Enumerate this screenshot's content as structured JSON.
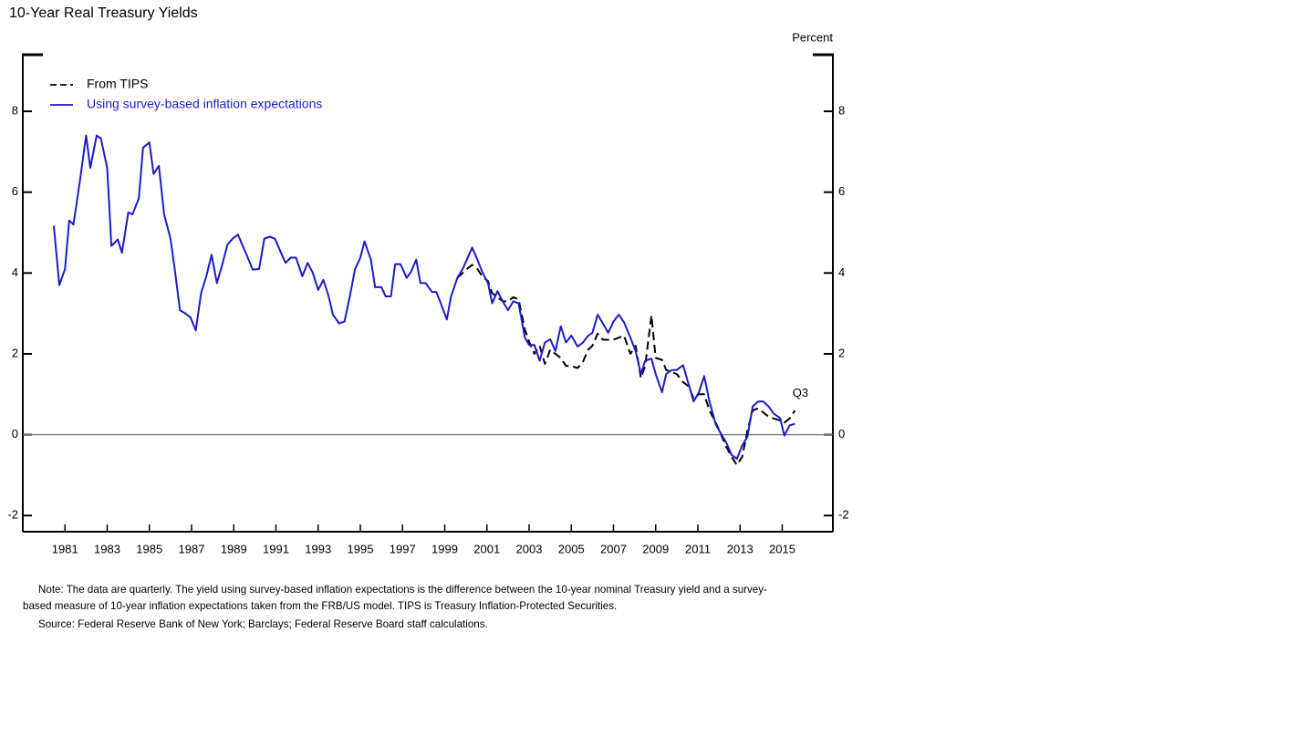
{
  "chart_data": {
    "type": "line",
    "title": "10-Year Real Treasury Yields",
    "y_axis_label": "Percent",
    "annotation": "Q3",
    "notes": [
      "Note:  The data are quarterly. The yield using survey-based inflation expectations is the difference between the 10-year nominal Treasury yield and a survey-",
      "based measure of 10-year inflation expectations taken from the FRB/US model. TIPS is Treasury Inflation-Protected Securities.",
      "Source:  Federal Reserve Bank of New York; Barclays; Federal Reserve Board staff calculations."
    ],
    "legend": "top-left",
    "xlim": [
      1979,
      2017.4
    ],
    "xticks": [
      1981,
      1983,
      1985,
      1987,
      1989,
      1991,
      1993,
      1995,
      1997,
      1999,
      2001,
      2003,
      2005,
      2007,
      2009,
      2011,
      2013,
      2015
    ],
    "ylim": [
      -2.4,
      9.4
    ],
    "yticks": [
      -2,
      0,
      2,
      4,
      6,
      8
    ],
    "x": [
      1980.47,
      1980.73,
      1981.0,
      1981.2,
      1981.4,
      1981.7,
      1982.0,
      1982.2,
      1982.5,
      1982.7,
      1983.0,
      1983.2,
      1983.5,
      1983.7,
      1984.0,
      1984.2,
      1984.5,
      1984.7,
      1985.0,
      1985.2,
      1985.45,
      1985.7,
      1986.0,
      1986.2,
      1986.45,
      1986.7,
      1986.95,
      1987.2,
      1987.45,
      1987.7,
      1987.95,
      1988.2,
      1988.45,
      1988.7,
      1988.95,
      1989.2,
      1989.4,
      1989.65,
      1989.9,
      1990.2,
      1990.45,
      1990.7,
      1990.95,
      1991.2,
      1991.45,
      1991.7,
      1991.95,
      1992.25,
      1992.5,
      1992.75,
      1993.0,
      1993.25,
      1993.5,
      1993.7,
      1994.0,
      1994.25,
      1994.5,
      1994.75,
      1995.0,
      1995.2,
      1995.5,
      1995.7,
      1996.0,
      1996.2,
      1996.45,
      1996.65,
      1996.9,
      1997.2,
      1997.4,
      1997.65,
      1997.85,
      1998.1,
      1998.4,
      1998.6,
      1998.85,
      1999.1,
      1999.3,
      1999.6,
      1999.85,
      2000.05,
      2000.3,
      2000.55,
      2000.8,
      2001.05,
      2001.25,
      2001.5,
      2001.75,
      2002.0,
      2002.25,
      2002.5,
      2002.8,
      2003.0,
      2003.25,
      2003.5,
      2003.75,
      2004.0,
      2004.25,
      2004.5,
      2004.75,
      2005.0,
      2005.3,
      2005.55,
      2005.8,
      2006.0,
      2006.25,
      2006.5,
      2006.75,
      2007.0,
      2007.25,
      2007.5,
      2007.8,
      2008.05,
      2008.3,
      2008.5,
      2008.8,
      2009.0,
      2009.3,
      2009.5,
      2009.75,
      2010.0,
      2010.3,
      2010.55,
      2010.8,
      2011.05,
      2011.3,
      2011.55,
      2011.85,
      2012.1,
      2012.35,
      2012.6,
      2012.85,
      2013.1,
      2013.35,
      2013.6,
      2013.85,
      2014.1,
      2014.35,
      2014.6,
      2014.9,
      2015.1,
      2015.35,
      2015.6
    ],
    "series": [
      {
        "name": "From TIPS",
        "color": "#000000",
        "style": "dashed",
        "values": [
          null,
          null,
          null,
          null,
          null,
          null,
          null,
          null,
          null,
          null,
          null,
          null,
          null,
          null,
          null,
          null,
          null,
          null,
          null,
          null,
          null,
          null,
          null,
          null,
          null,
          null,
          null,
          null,
          null,
          null,
          null,
          null,
          null,
          null,
          null,
          null,
          null,
          null,
          null,
          null,
          null,
          null,
          null,
          null,
          null,
          null,
          null,
          null,
          null,
          null,
          null,
          null,
          null,
          null,
          null,
          null,
          null,
          null,
          null,
          null,
          null,
          null,
          null,
          null,
          null,
          null,
          null,
          null,
          null,
          null,
          null,
          null,
          null,
          null,
          null,
          null,
          null,
          3.88,
          4.0,
          4.1,
          4.2,
          4.1,
          3.9,
          3.8,
          3.5,
          3.4,
          3.3,
          3.3,
          3.4,
          3.35,
          2.6,
          2.3,
          2.0,
          2.2,
          1.75,
          2.1,
          2.0,
          1.9,
          1.7,
          1.7,
          1.65,
          1.8,
          2.1,
          2.2,
          2.5,
          2.35,
          2.35,
          2.35,
          2.4,
          2.45,
          2.0,
          2.2,
          1.4,
          1.7,
          2.95,
          1.9,
          1.85,
          1.6,
          1.55,
          1.5,
          1.3,
          1.2,
          0.9,
          1.0,
          1.0,
          0.6,
          0.3,
          0.0,
          -0.3,
          -0.55,
          -0.75,
          -0.55,
          0.1,
          0.6,
          0.65,
          0.55,
          0.45,
          0.4,
          0.35,
          0.3,
          0.4,
          0.6
        ]
      },
      {
        "name": "Using survey-based inflation expectations",
        "color": "#1c1cc8",
        "style": "solid",
        "values": [
          5.17,
          3.7,
          4.1,
          5.3,
          5.2,
          6.25,
          7.4,
          6.6,
          7.4,
          7.33,
          6.6,
          4.67,
          4.83,
          4.5,
          5.5,
          5.45,
          5.85,
          7.1,
          7.23,
          6.45,
          6.65,
          5.45,
          4.85,
          4.1,
          3.08,
          3.0,
          2.9,
          2.58,
          3.5,
          3.92,
          4.45,
          3.75,
          4.2,
          4.7,
          4.85,
          4.95,
          4.7,
          4.4,
          4.08,
          4.1,
          4.85,
          4.9,
          4.85,
          4.55,
          4.25,
          4.38,
          4.38,
          3.92,
          4.25,
          4.0,
          3.58,
          3.83,
          3.42,
          2.97,
          2.75,
          2.8,
          3.42,
          4.1,
          4.38,
          4.78,
          4.33,
          3.65,
          3.65,
          3.42,
          3.42,
          4.22,
          4.22,
          3.88,
          4.03,
          4.33,
          3.75,
          3.75,
          3.53,
          3.53,
          3.2,
          2.85,
          3.42,
          3.88,
          4.1,
          4.33,
          4.63,
          4.33,
          4.0,
          3.75,
          3.25,
          3.55,
          3.3,
          3.08,
          3.3,
          3.25,
          2.4,
          2.22,
          2.22,
          1.83,
          2.28,
          2.36,
          2.07,
          2.68,
          2.28,
          2.45,
          2.18,
          2.28,
          2.45,
          2.52,
          2.97,
          2.75,
          2.52,
          2.8,
          2.97,
          2.78,
          2.4,
          2.07,
          1.5,
          1.83,
          1.88,
          1.5,
          1.05,
          1.5,
          1.6,
          1.6,
          1.72,
          1.27,
          0.82,
          1.05,
          1.45,
          0.82,
          0.25,
          0.02,
          -0.2,
          -0.5,
          -0.6,
          -0.27,
          -0.05,
          0.7,
          0.82,
          0.82,
          0.7,
          0.52,
          0.41,
          -0.02,
          0.23,
          0.27
        ]
      }
    ]
  }
}
